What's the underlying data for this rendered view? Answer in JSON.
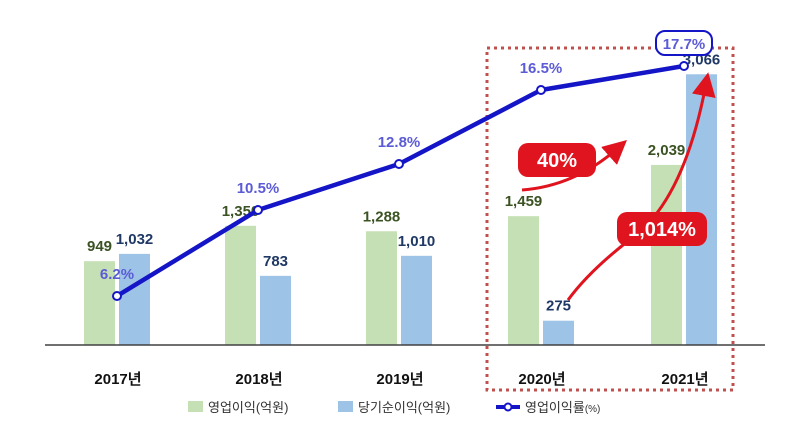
{
  "chart_data": {
    "type": "bar+line",
    "categories": [
      "2017년",
      "2018년",
      "2019년",
      "2020년",
      "2021년"
    ],
    "series": [
      {
        "name": "영업이익(억원)",
        "type": "bar",
        "values": [
          949,
          1350,
          1288,
          1459,
          2039
        ],
        "labels": [
          "949",
          "1,350",
          "1,288",
          "1,459",
          "2,039"
        ]
      },
      {
        "name": "당기순이익(억원)",
        "type": "bar",
        "values": [
          1032,
          783,
          1010,
          275,
          3066
        ],
        "labels": [
          "1,032",
          "783",
          "1,010",
          "275",
          "3,066"
        ]
      },
      {
        "name": "영업이익률(%)",
        "type": "line",
        "values": [
          6.2,
          10.5,
          12.8,
          16.5,
          17.7
        ],
        "labels": [
          "6.2%",
          "10.5%",
          "12.8%",
          "16.5%",
          "17.7%"
        ]
      }
    ],
    "annotations": [
      "40%",
      "1,014%"
    ],
    "legend": "bottom",
    "grid": false,
    "colors": {
      "operating_profit": "#c5e0b4",
      "net_income": "#9dc3e6",
      "margin_line": "#1515c8",
      "margin_label": "#5b5bd6",
      "bar_label_green": "#3b5323",
      "bar_label_blue": "#1f3864",
      "arrow": "#e0141e",
      "highlight_box": "#c0504d"
    }
  },
  "legend": {
    "items": [
      "영업이익(억원)",
      "당기순이익(억원)",
      "영업이익률"
    ],
    "line_unit": "(%)"
  }
}
